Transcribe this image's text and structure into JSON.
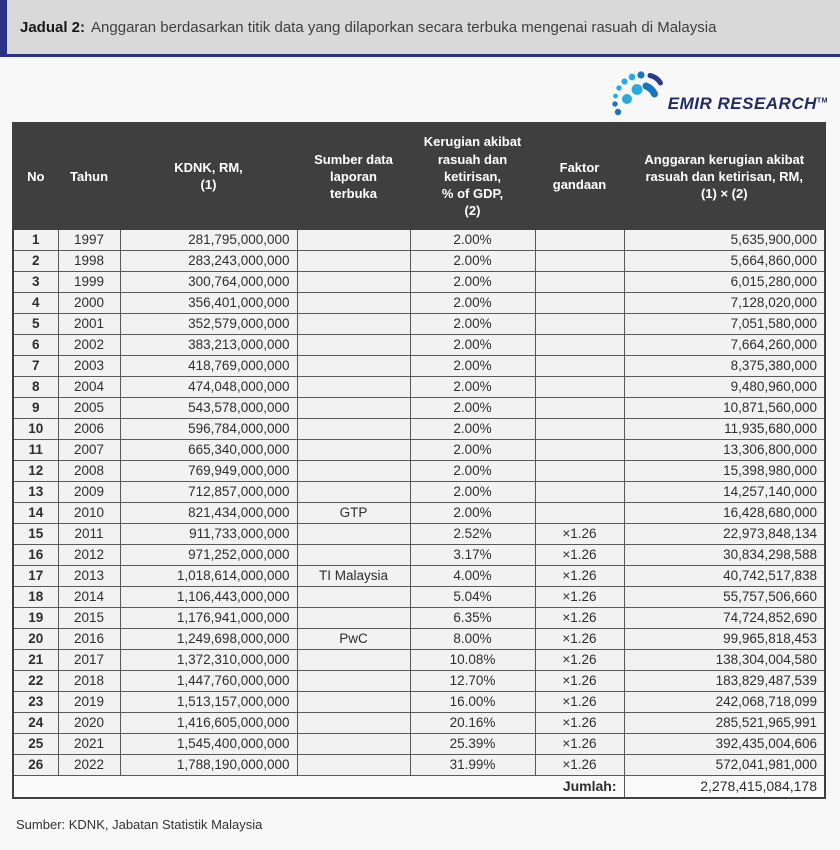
{
  "title": {
    "label": "Jadual 2:",
    "text": "Anggaran berdasarkan titik data yang dilaporkan secara terbuka mengenai rasuah di Malaysia"
  },
  "logo": {
    "name": "EMIR RESEARCH",
    "trademark": "TM",
    "text_color": "#232b66",
    "dot_light": "#29abe2",
    "dot_dark": "#1c75bc",
    "dash_dark": "#2a3b8f"
  },
  "colors": {
    "accent_navy": "#2b3285",
    "header_bg": "#3f3f3f",
    "row_bg": "#f2f2f2",
    "band_bg": "#d9d9d9",
    "cell_border": "#595959"
  },
  "table": {
    "columns": [
      "No",
      "Tahun",
      "KDNK, RM,\n(1)",
      "Sumber data\nlaporan\nterbuka",
      "Kerugian akibat\nrasuah dan\nketirisan,\n% of GDP,\n(2)",
      "Faktor\ngandaan",
      "Anggaran kerugian akibat\nrasuah dan ketirisan, RM,\n(1) × (2)"
    ],
    "rows": [
      {
        "no": "1",
        "tahun": "1997",
        "kdnk": "281,795,000,000",
        "sumber": "",
        "kerugian": "2.00%",
        "faktor": "",
        "anggaran": "5,635,900,000"
      },
      {
        "no": "2",
        "tahun": "1998",
        "kdnk": "283,243,000,000",
        "sumber": "",
        "kerugian": "2.00%",
        "faktor": "",
        "anggaran": "5,664,860,000"
      },
      {
        "no": "3",
        "tahun": "1999",
        "kdnk": "300,764,000,000",
        "sumber": "",
        "kerugian": "2.00%",
        "faktor": "",
        "anggaran": "6,015,280,000"
      },
      {
        "no": "4",
        "tahun": "2000",
        "kdnk": "356,401,000,000",
        "sumber": "",
        "kerugian": "2.00%",
        "faktor": "",
        "anggaran": "7,128,020,000"
      },
      {
        "no": "5",
        "tahun": "2001",
        "kdnk": "352,579,000,000",
        "sumber": "",
        "kerugian": "2.00%",
        "faktor": "",
        "anggaran": "7,051,580,000"
      },
      {
        "no": "6",
        "tahun": "2002",
        "kdnk": "383,213,000,000",
        "sumber": "",
        "kerugian": "2.00%",
        "faktor": "",
        "anggaran": "7,664,260,000"
      },
      {
        "no": "7",
        "tahun": "2003",
        "kdnk": "418,769,000,000",
        "sumber": "",
        "kerugian": "2.00%",
        "faktor": "",
        "anggaran": "8,375,380,000"
      },
      {
        "no": "8",
        "tahun": "2004",
        "kdnk": "474,048,000,000",
        "sumber": "",
        "kerugian": "2.00%",
        "faktor": "",
        "anggaran": "9,480,960,000"
      },
      {
        "no": "9",
        "tahun": "2005",
        "kdnk": "543,578,000,000",
        "sumber": "",
        "kerugian": "2.00%",
        "faktor": "",
        "anggaran": "10,871,560,000"
      },
      {
        "no": "10",
        "tahun": "2006",
        "kdnk": "596,784,000,000",
        "sumber": "",
        "kerugian": "2.00%",
        "faktor": "",
        "anggaran": "11,935,680,000"
      },
      {
        "no": "11",
        "tahun": "2007",
        "kdnk": "665,340,000,000",
        "sumber": "",
        "kerugian": "2.00%",
        "faktor": "",
        "anggaran": "13,306,800,000"
      },
      {
        "no": "12",
        "tahun": "2008",
        "kdnk": "769,949,000,000",
        "sumber": "",
        "kerugian": "2.00%",
        "faktor": "",
        "anggaran": "15,398,980,000"
      },
      {
        "no": "13",
        "tahun": "2009",
        "kdnk": "712,857,000,000",
        "sumber": "",
        "kerugian": "2.00%",
        "faktor": "",
        "anggaran": "14,257,140,000"
      },
      {
        "no": "14",
        "tahun": "2010",
        "kdnk": "821,434,000,000",
        "sumber": "GTP",
        "kerugian": "2.00%",
        "faktor": "",
        "anggaran": "16,428,680,000"
      },
      {
        "no": "15",
        "tahun": "2011",
        "kdnk": "911,733,000,000",
        "sumber": "",
        "kerugian": "2.52%",
        "faktor": "×1.26",
        "anggaran": "22,973,848,134"
      },
      {
        "no": "16",
        "tahun": "2012",
        "kdnk": "971,252,000,000",
        "sumber": "",
        "kerugian": "3.17%",
        "faktor": "×1.26",
        "anggaran": "30,834,298,588"
      },
      {
        "no": "17",
        "tahun": "2013",
        "kdnk": "1,018,614,000,000",
        "sumber": "TI Malaysia",
        "kerugian": "4.00%",
        "faktor": "×1.26",
        "anggaran": "40,742,517,838"
      },
      {
        "no": "18",
        "tahun": "2014",
        "kdnk": "1,106,443,000,000",
        "sumber": "",
        "kerugian": "5.04%",
        "faktor": "×1.26",
        "anggaran": "55,757,506,660"
      },
      {
        "no": "19",
        "tahun": "2015",
        "kdnk": "1,176,941,000,000",
        "sumber": "",
        "kerugian": "6.35%",
        "faktor": "×1.26",
        "anggaran": "74,724,852,690"
      },
      {
        "no": "20",
        "tahun": "2016",
        "kdnk": "1,249,698,000,000",
        "sumber": "PwC",
        "kerugian": "8.00%",
        "faktor": "×1.26",
        "anggaran": "99,965,818,453"
      },
      {
        "no": "21",
        "tahun": "2017",
        "kdnk": "1,372,310,000,000",
        "sumber": "",
        "kerugian": "10.08%",
        "faktor": "×1.26",
        "anggaran": "138,304,004,580"
      },
      {
        "no": "22",
        "tahun": "2018",
        "kdnk": "1,447,760,000,000",
        "sumber": "",
        "kerugian": "12.70%",
        "faktor": "×1.26",
        "anggaran": "183,829,487,539"
      },
      {
        "no": "23",
        "tahun": "2019",
        "kdnk": "1,513,157,000,000",
        "sumber": "",
        "kerugian": "16.00%",
        "faktor": "×1.26",
        "anggaran": "242,068,718,099"
      },
      {
        "no": "24",
        "tahun": "2020",
        "kdnk": "1,416,605,000,000",
        "sumber": "",
        "kerugian": "20.16%",
        "faktor": "×1.26",
        "anggaran": "285,521,965,991"
      },
      {
        "no": "25",
        "tahun": "2021",
        "kdnk": "1,545,400,000,000",
        "sumber": "",
        "kerugian": "25.39%",
        "faktor": "×1.26",
        "anggaran": "392,435,004,606"
      },
      {
        "no": "26",
        "tahun": "2022",
        "kdnk": "1,788,190,000,000",
        "sumber": "",
        "kerugian": "31.99%",
        "faktor": "×1.26",
        "anggaran": "572,041,981,000"
      }
    ],
    "total": {
      "label": "Jumlah:",
      "value": "2,278,415,084,178"
    }
  },
  "footer": {
    "source": "Sumber: KDNK, Jabatan Statistik Malaysia"
  }
}
